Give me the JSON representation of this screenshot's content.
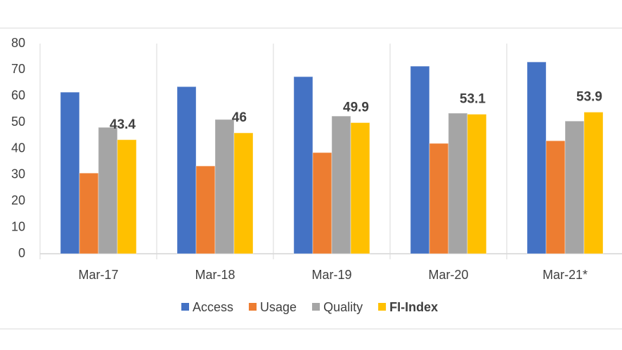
{
  "chart_data": {
    "type": "bar",
    "categories": [
      "Mar-17",
      "Mar-18",
      "Mar-19",
      "Mar-20",
      "Mar-21*"
    ],
    "series": [
      {
        "name": "Access",
        "color": "#4472c4",
        "values": [
          61.5,
          63.6,
          67.4,
          71.4,
          73
        ]
      },
      {
        "name": "Usage",
        "color": "#ed7d31",
        "values": [
          30.7,
          33.4,
          38.5,
          42,
          43
        ]
      },
      {
        "name": "Quality",
        "color": "#a5a5a5",
        "values": [
          48.1,
          51.1,
          52.4,
          53.5,
          50.5
        ]
      },
      {
        "name": "FI-Index",
        "color": "#ffc000",
        "values": [
          43.4,
          46,
          49.9,
          53.1,
          53.9
        ],
        "data_labels": true
      }
    ],
    "ylim": [
      0,
      80
    ],
    "yticks": [
      0,
      10,
      20,
      30,
      40,
      50,
      60,
      70,
      80
    ],
    "grid": false,
    "legend": "bottom"
  }
}
